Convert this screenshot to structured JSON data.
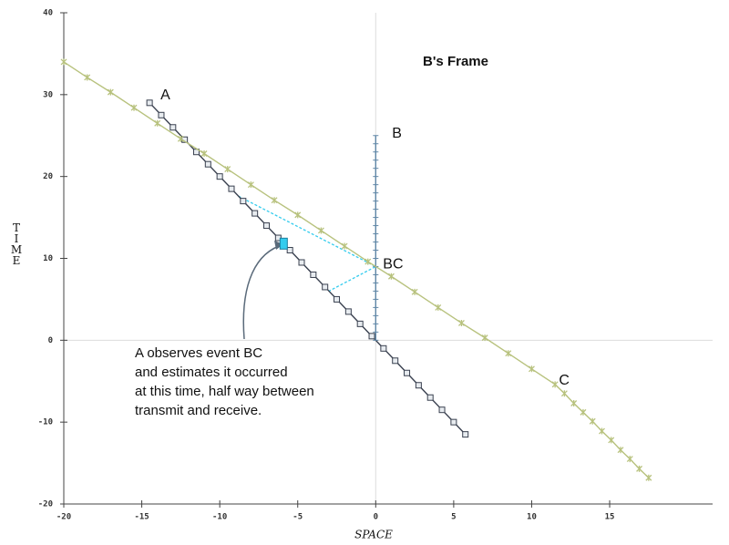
{
  "chart_data": {
    "type": "line",
    "title": "B's Frame",
    "x_label": "SPACE",
    "y_label": "TIME",
    "xlim": [
      -20,
      21.6
    ],
    "ylim": [
      -20,
      40
    ],
    "xticks": [
      -20,
      -15,
      -10,
      -5,
      0,
      5,
      10,
      15
    ],
    "yticks": [
      -20,
      -10,
      0,
      10,
      20,
      30,
      40
    ],
    "series": [
      {
        "name": "A",
        "color": "#3a4150",
        "marker": "square",
        "x": [
          -14.5,
          -13.75,
          -13,
          -12.25,
          -11.5,
          -10.75,
          -10,
          -9.25,
          -8.5,
          -7.75,
          -7,
          -6.25,
          -5.5,
          -4.75,
          -4,
          -3.25,
          -2.5,
          -1.75,
          -1,
          -0.25,
          0.5,
          1.25,
          2,
          2.75,
          3.5,
          4.25,
          5,
          5.75
        ],
        "values": [
          29,
          27.5,
          26,
          24.5,
          23,
          21.5,
          20,
          18.5,
          17,
          15.5,
          14,
          12.5,
          11,
          9.5,
          8,
          6.5,
          5,
          3.5,
          2,
          0.5,
          -1,
          -2.5,
          -4,
          -5.5,
          -7,
          -8.5,
          -10,
          -11.5
        ]
      },
      {
        "name": "B",
        "color": "#5f86a6",
        "marker": "tick",
        "x": [
          0,
          0,
          0,
          0,
          0,
          0,
          0,
          0,
          0,
          0,
          0,
          0,
          0,
          0,
          0,
          0,
          0,
          0,
          0,
          0,
          0,
          0,
          0,
          0,
          0,
          0
        ],
        "values": [
          25,
          24,
          23,
          22,
          21,
          20,
          19,
          18,
          17,
          16,
          15,
          14,
          13,
          12,
          11,
          10,
          9,
          8,
          7,
          6,
          5,
          4,
          3,
          2,
          1,
          0
        ]
      },
      {
        "name": "C",
        "color": "#b8c27e",
        "marker": "star",
        "x": [
          -20,
          -18.5,
          -17,
          -15.5,
          -14,
          -12.5,
          -11,
          -9.5,
          -8,
          -6.5,
          -5,
          -3.5,
          -2,
          -0.5,
          1,
          2.5,
          4,
          5.5,
          7,
          8.5,
          10,
          11.5,
          12.1,
          12.7,
          13.3,
          13.9,
          14.5,
          15.1,
          15.7,
          16.3,
          16.9,
          17.5
        ],
        "values": [
          34,
          32.1,
          30.3,
          28.4,
          26.5,
          24.6,
          22.8,
          20.9,
          19,
          17.1,
          15.3,
          13.4,
          11.5,
          9.6,
          7.8,
          5.9,
          4,
          2.1,
          0.3,
          -1.6,
          -3.5,
          -5.4,
          -6.5,
          -7.7,
          -8.8,
          -9.9,
          -11.1,
          -12.2,
          -13.4,
          -14.5,
          -15.7,
          -16.8
        ]
      }
    ],
    "light_signals": [
      {
        "color": "#33ccee",
        "x": [
          -8.8,
          0,
          -3
        ],
        "values": [
          17.6,
          9,
          6
        ]
      }
    ],
    "event_label": "BC",
    "event": {
      "x": 0,
      "value": 9
    },
    "estimate": {
      "x": -5.9,
      "value": 11.8,
      "color": "#33ccee"
    },
    "annotation": [
      "A observes event BC",
      "and estimates it occurred",
      "at this time, half way between",
      "transmit and receive."
    ]
  }
}
